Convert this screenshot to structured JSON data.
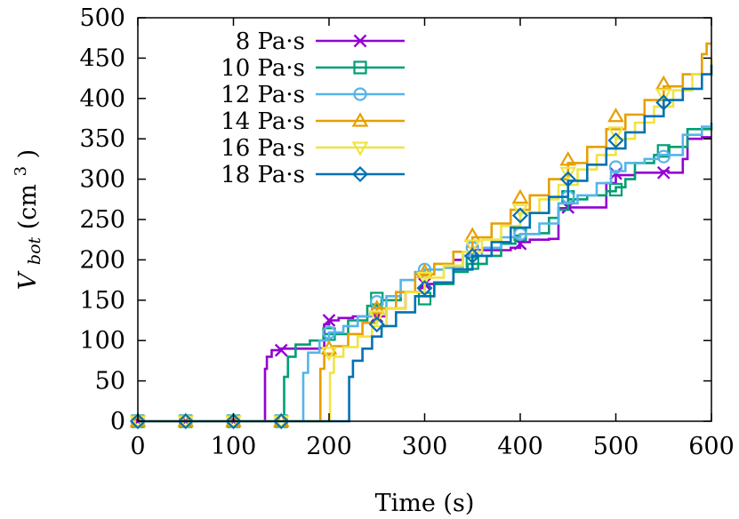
{
  "chart_data": {
    "type": "line",
    "title": "",
    "xlabel": "Time (s)",
    "ylabel_main": "V",
    "ylabel_sub": "bot",
    "ylabel_unit_open": " (cm",
    "ylabel_unit_sup": "3",
    "ylabel_unit_close": ")",
    "xlim": [
      0,
      600
    ],
    "ylim": [
      0,
      500
    ],
    "xticks": [
      0,
      100,
      200,
      300,
      400,
      500,
      600
    ],
    "yticks": [
      0,
      50,
      100,
      150,
      200,
      250,
      300,
      350,
      400,
      450,
      500
    ],
    "grid": false,
    "legend_position": "top-left",
    "series": [
      {
        "name": "8 Pa·s",
        "color": "#9400d3",
        "marker": "cross",
        "points": [
          [
            0,
            0
          ],
          [
            132,
            0
          ],
          [
            133,
            65
          ],
          [
            135,
            80
          ],
          [
            140,
            88
          ],
          [
            150,
            90
          ],
          [
            170,
            90
          ],
          [
            190,
            91
          ],
          [
            195,
            120
          ],
          [
            200,
            125
          ],
          [
            210,
            128
          ],
          [
            225,
            130
          ],
          [
            245,
            130
          ],
          [
            260,
            140
          ],
          [
            280,
            160
          ],
          [
            295,
            165
          ],
          [
            300,
            170
          ],
          [
            320,
            172
          ],
          [
            330,
            200
          ],
          [
            340,
            205
          ],
          [
            350,
            212
          ],
          [
            390,
            215
          ],
          [
            400,
            222
          ],
          [
            410,
            225
          ],
          [
            430,
            226
          ],
          [
            440,
            264
          ],
          [
            450,
            265
          ],
          [
            480,
            265
          ],
          [
            490,
            295
          ],
          [
            500,
            305
          ],
          [
            520,
            308
          ],
          [
            540,
            308
          ],
          [
            550,
            310
          ],
          [
            555,
            308
          ],
          [
            570,
            325
          ],
          [
            575,
            350
          ],
          [
            590,
            352
          ],
          [
            600,
            352
          ]
        ],
        "markers": [
          [
            0,
            0
          ],
          [
            50,
            0
          ],
          [
            100,
            0
          ],
          [
            150,
            88
          ],
          [
            200,
            125
          ],
          [
            250,
            130
          ],
          [
            300,
            170
          ],
          [
            350,
            212
          ],
          [
            400,
            220
          ],
          [
            450,
            265
          ],
          [
            500,
            307
          ],
          [
            550,
            308
          ]
        ]
      },
      {
        "name": "10 Pa·s",
        "color": "#009e73",
        "marker": "square",
        "points": [
          [
            0,
            0
          ],
          [
            152,
            0
          ],
          [
            153,
            55
          ],
          [
            157,
            80
          ],
          [
            165,
            95
          ],
          [
            180,
            100
          ],
          [
            195,
            108
          ],
          [
            220,
            125
          ],
          [
            240,
            143
          ],
          [
            255,
            150
          ],
          [
            275,
            160
          ],
          [
            290,
            160
          ],
          [
            300,
            155
          ],
          [
            310,
            170
          ],
          [
            330,
            185
          ],
          [
            345,
            195
          ],
          [
            365,
            205
          ],
          [
            380,
            220
          ],
          [
            395,
            230
          ],
          [
            400,
            232
          ],
          [
            420,
            233
          ],
          [
            430,
            252
          ],
          [
            440,
            262
          ],
          [
            450,
            275
          ],
          [
            470,
            280
          ],
          [
            490,
            285
          ],
          [
            500,
            290
          ],
          [
            510,
            300
          ],
          [
            520,
            320
          ],
          [
            540,
            330
          ],
          [
            555,
            340
          ],
          [
            575,
            362
          ],
          [
            600,
            370
          ]
        ],
        "markers": [
          [
            0,
            0
          ],
          [
            50,
            0
          ],
          [
            100,
            0
          ],
          [
            150,
            0
          ],
          [
            200,
            108
          ],
          [
            250,
            152
          ],
          [
            300,
            152
          ],
          [
            350,
            196
          ],
          [
            400,
            232
          ],
          [
            450,
            278
          ],
          [
            500,
            287
          ],
          [
            550,
            335
          ]
        ]
      },
      {
        "name": "12 Pa·s",
        "color": "#56b4e9",
        "marker": "circle",
        "points": [
          [
            0,
            0
          ],
          [
            172,
            0
          ],
          [
            173,
            60
          ],
          [
            178,
            85
          ],
          [
            190,
            100
          ],
          [
            200,
            110
          ],
          [
            215,
            118
          ],
          [
            230,
            130
          ],
          [
            245,
            140
          ],
          [
            260,
            155
          ],
          [
            275,
            175
          ],
          [
            290,
            185
          ],
          [
            300,
            188
          ],
          [
            320,
            190
          ],
          [
            340,
            205
          ],
          [
            360,
            215
          ],
          [
            380,
            228
          ],
          [
            400,
            232
          ],
          [
            420,
            245
          ],
          [
            440,
            270
          ],
          [
            460,
            280
          ],
          [
            480,
            295
          ],
          [
            495,
            310
          ],
          [
            510,
            320
          ],
          [
            530,
            325
          ],
          [
            545,
            330
          ],
          [
            555,
            330
          ],
          [
            570,
            355
          ],
          [
            590,
            365
          ],
          [
            600,
            368
          ]
        ],
        "markers": [
          [
            0,
            0
          ],
          [
            50,
            0
          ],
          [
            100,
            0
          ],
          [
            150,
            0
          ],
          [
            200,
            110
          ],
          [
            250,
            148
          ],
          [
            300,
            188
          ],
          [
            350,
            215
          ],
          [
            400,
            232
          ],
          [
            450,
            278
          ],
          [
            500,
            315
          ],
          [
            550,
            328
          ]
        ]
      },
      {
        "name": "14 Pa·s",
        "color": "#e69f00",
        "marker": "triangle-up",
        "points": [
          [
            0,
            0
          ],
          [
            190,
            0
          ],
          [
            191,
            65
          ],
          [
            195,
            82
          ],
          [
            205,
            93
          ],
          [
            220,
            108
          ],
          [
            235,
            122
          ],
          [
            250,
            140
          ],
          [
            270,
            160
          ],
          [
            290,
            182
          ],
          [
            310,
            195
          ],
          [
            330,
            210
          ],
          [
            350,
            228
          ],
          [
            370,
            245
          ],
          [
            390,
            262
          ],
          [
            410,
            280
          ],
          [
            430,
            300
          ],
          [
            450,
            320
          ],
          [
            470,
            340
          ],
          [
            490,
            362
          ],
          [
            510,
            380
          ],
          [
            530,
            398
          ],
          [
            550,
            415
          ],
          [
            570,
            430
          ],
          [
            590,
            455
          ],
          [
            595,
            468
          ],
          [
            600,
            468
          ]
        ],
        "markers": [
          [
            0,
            0
          ],
          [
            50,
            0
          ],
          [
            100,
            0
          ],
          [
            150,
            0
          ],
          [
            200,
            90
          ],
          [
            250,
            140
          ],
          [
            300,
            185
          ],
          [
            350,
            230
          ],
          [
            400,
            277
          ],
          [
            450,
            324
          ],
          [
            500,
            378
          ],
          [
            550,
            418
          ]
        ]
      },
      {
        "name": "16 Pa·s",
        "color": "#f0e442",
        "marker": "triangle-down",
        "points": [
          [
            0,
            0
          ],
          [
            200,
            0
          ],
          [
            201,
            60
          ],
          [
            205,
            80
          ],
          [
            215,
            92
          ],
          [
            230,
            105
          ],
          [
            245,
            118
          ],
          [
            260,
            140
          ],
          [
            280,
            160
          ],
          [
            300,
            178
          ],
          [
            320,
            193
          ],
          [
            340,
            210
          ],
          [
            360,
            225
          ],
          [
            380,
            242
          ],
          [
            400,
            258
          ],
          [
            420,
            275
          ],
          [
            440,
            293
          ],
          [
            460,
            312
          ],
          [
            480,
            330
          ],
          [
            500,
            350
          ],
          [
            520,
            370
          ],
          [
            540,
            390
          ],
          [
            560,
            410
          ],
          [
            580,
            430
          ],
          [
            600,
            450
          ]
        ],
        "markers": [
          [
            0,
            0
          ],
          [
            50,
            0
          ],
          [
            100,
            0
          ],
          [
            150,
            0
          ],
          [
            200,
            85
          ],
          [
            250,
            130
          ],
          [
            300,
            178
          ],
          [
            350,
            218
          ],
          [
            400,
            262
          ],
          [
            450,
            308
          ],
          [
            500,
            358
          ],
          [
            550,
            405
          ]
        ]
      },
      {
        "name": "18 Pa·s",
        "color": "#0072b2",
        "marker": "diamond",
        "points": [
          [
            0,
            0
          ],
          [
            220,
            0
          ],
          [
            221,
            55
          ],
          [
            225,
            75
          ],
          [
            235,
            90
          ],
          [
            245,
            105
          ],
          [
            255,
            118
          ],
          [
            270,
            135
          ],
          [
            290,
            155
          ],
          [
            310,
            172
          ],
          [
            330,
            188
          ],
          [
            350,
            205
          ],
          [
            370,
            222
          ],
          [
            390,
            240
          ],
          [
            410,
            258
          ],
          [
            430,
            278
          ],
          [
            450,
            298
          ],
          [
            470,
            318
          ],
          [
            490,
            338
          ],
          [
            510,
            358
          ],
          [
            530,
            378
          ],
          [
            550,
            398
          ],
          [
            570,
            412
          ],
          [
            590,
            430
          ],
          [
            600,
            442
          ]
        ],
        "markers": [
          [
            0,
            0
          ],
          [
            50,
            0
          ],
          [
            100,
            0
          ],
          [
            150,
            0
          ],
          [
            250,
            120
          ],
          [
            300,
            165
          ],
          [
            350,
            205
          ],
          [
            400,
            255
          ],
          [
            450,
            300
          ],
          [
            500,
            348
          ],
          [
            550,
            395
          ]
        ]
      }
    ]
  }
}
